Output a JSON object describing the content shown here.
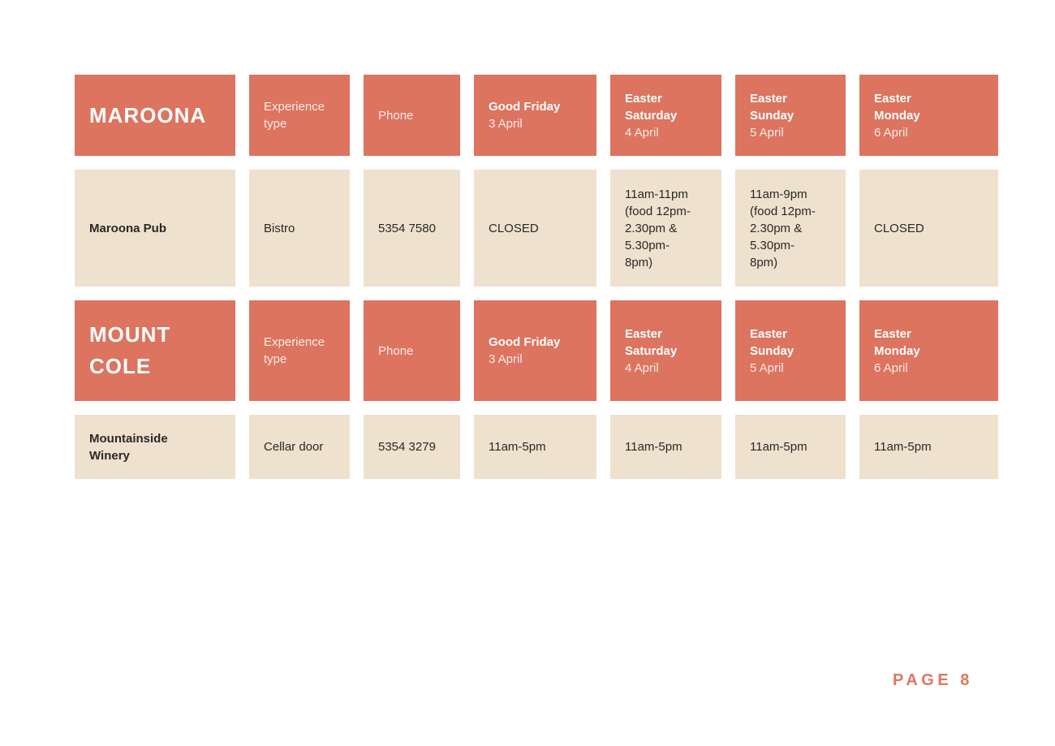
{
  "colors": {
    "header_bg": "#DC7460",
    "cell_bg": "#EEE1CD",
    "header_text": "#FFFFFF",
    "body_text": "#2B2826",
    "accent": "#E0765F",
    "page_bg": "#FFFFFF"
  },
  "tables": [
    {
      "region": "MAROONA",
      "headers": {
        "experience_type": "Experience type",
        "phone": "Phone",
        "days": [
          {
            "name": "Good Friday",
            "date": "3 April"
          },
          {
            "name": "Easter\nSaturday",
            "date": "4 April"
          },
          {
            "name": "Easter\nSunday",
            "date": "5 April"
          },
          {
            "name": "Easter\nMonday",
            "date": "6 April"
          }
        ]
      },
      "venues": [
        {
          "name": "Maroona Pub",
          "experience_type": "Bistro",
          "phone": "5354 7580",
          "hours": [
            "CLOSED",
            "11am-11pm\n(food 12pm-\n2.30pm &\n5.30pm-\n8pm)",
            "11am-9pm\n(food 12pm-\n2.30pm &\n5.30pm-\n8pm)",
            "CLOSED"
          ]
        }
      ]
    },
    {
      "region": "MOUNT COLE",
      "headers": {
        "experience_type": "Experience type",
        "phone": "Phone",
        "days": [
          {
            "name": "Good Friday",
            "date": "3 April"
          },
          {
            "name": "Easter\nSaturday",
            "date": "4 April"
          },
          {
            "name": "Easter\nSunday",
            "date": "5 April"
          },
          {
            "name": "Easter\nMonday",
            "date": "6 April"
          }
        ]
      },
      "venues": [
        {
          "name": "Mountainside Winery",
          "experience_type": "Cellar door",
          "phone": "5354 3279",
          "hours": [
            "11am-5pm",
            "11am-5pm",
            "11am-5pm",
            "11am-5pm"
          ]
        }
      ]
    }
  ],
  "footer": {
    "page_label": "PAGE 8"
  }
}
